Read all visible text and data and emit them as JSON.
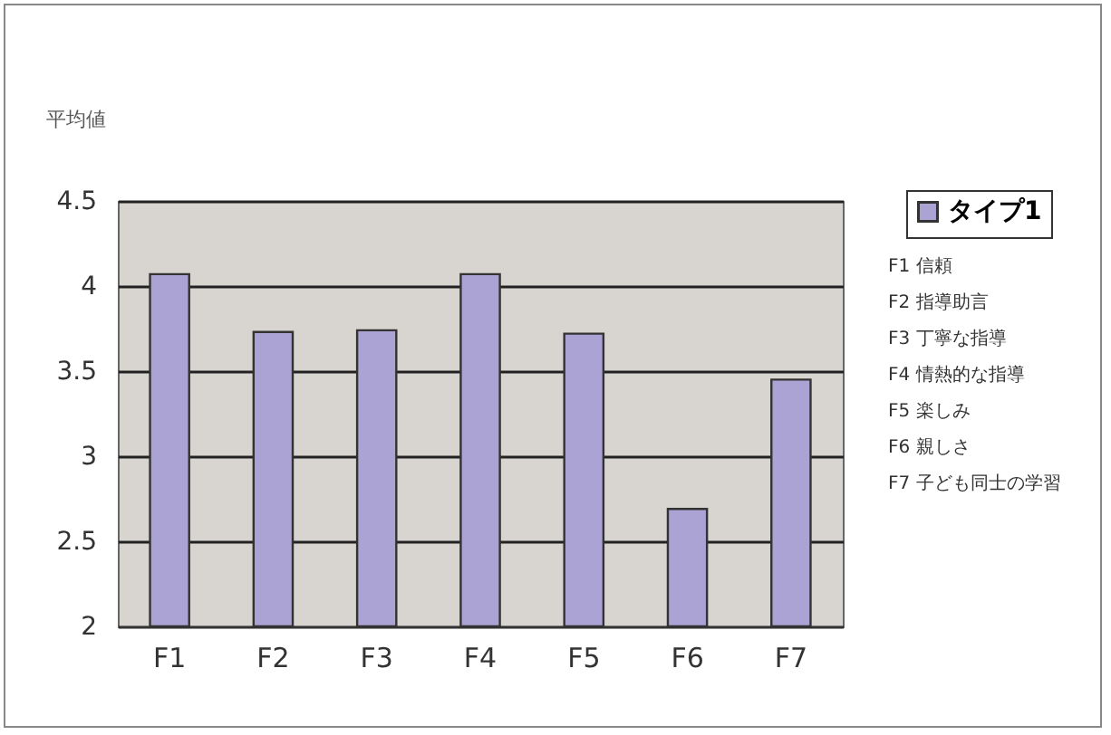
{
  "chart_data": {
    "type": "bar",
    "ylabel": "平均値",
    "categories": [
      "F1",
      "F2",
      "F3",
      "F4",
      "F5",
      "F6",
      "F7"
    ],
    "series": [
      {
        "name": "タイプ1",
        "color": "#aaa3d3",
        "values": [
          4.07,
          3.73,
          3.74,
          4.07,
          3.72,
          2.69,
          3.45
        ]
      }
    ],
    "ylim": [
      2,
      4.5
    ],
    "yticks": [
      2,
      2.5,
      3,
      3.5,
      4,
      4.5
    ],
    "grid": "y",
    "legend": "top right",
    "annotations": [
      "F1 信頼",
      "F2 指導助言",
      "F3 丁寧な指導",
      "F4 情熱的な指導",
      "F5 楽しみ",
      "F6 親しさ",
      "F7 子ども同士の学習"
    ]
  }
}
